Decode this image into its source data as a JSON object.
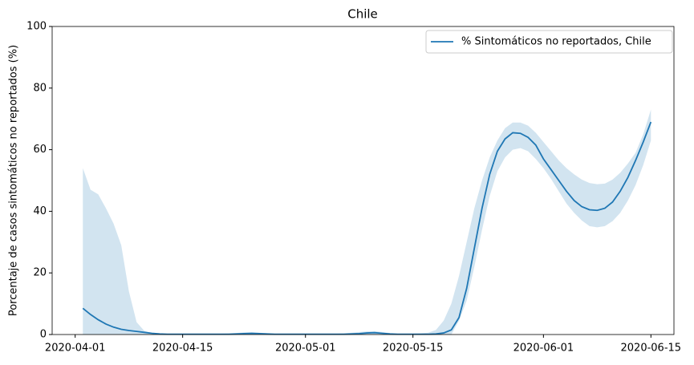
{
  "chart_data": {
    "type": "line",
    "title": "Chile",
    "ylabel": "Porcentaje de casos sintomáticos no reportados (%)",
    "x": [
      "2020-04-02",
      "2020-04-03",
      "2020-04-04",
      "2020-04-05",
      "2020-04-06",
      "2020-04-07",
      "2020-04-08",
      "2020-04-09",
      "2020-04-10",
      "2020-04-11",
      "2020-04-12",
      "2020-04-13",
      "2020-04-14",
      "2020-04-15",
      "2020-04-16",
      "2020-04-17",
      "2020-04-18",
      "2020-04-19",
      "2020-04-20",
      "2020-04-21",
      "2020-04-22",
      "2020-04-23",
      "2020-04-24",
      "2020-04-25",
      "2020-04-26",
      "2020-04-27",
      "2020-04-28",
      "2020-04-29",
      "2020-04-30",
      "2020-05-01",
      "2020-05-02",
      "2020-05-03",
      "2020-05-04",
      "2020-05-05",
      "2020-05-06",
      "2020-05-07",
      "2020-05-08",
      "2020-05-09",
      "2020-05-10",
      "2020-05-11",
      "2020-05-12",
      "2020-05-13",
      "2020-05-14",
      "2020-05-15",
      "2020-05-16",
      "2020-05-17",
      "2020-05-18",
      "2020-05-19",
      "2020-05-20",
      "2020-05-21",
      "2020-05-22",
      "2020-05-23",
      "2020-05-24",
      "2020-05-25",
      "2020-05-26",
      "2020-05-27",
      "2020-05-28",
      "2020-05-29",
      "2020-05-30",
      "2020-05-31",
      "2020-06-01",
      "2020-06-02",
      "2020-06-03",
      "2020-06-04",
      "2020-06-05",
      "2020-06-06",
      "2020-06-07",
      "2020-06-08",
      "2020-06-09",
      "2020-06-10",
      "2020-06-11",
      "2020-06-12",
      "2020-06-13",
      "2020-06-14",
      "2020-06-15"
    ],
    "series": [
      {
        "name": "% Sintomáticos no reportados, Chile",
        "color": "#1f77b4",
        "band_color": "#1f77b4",
        "values": [
          8.5,
          6.5,
          4.8,
          3.4,
          2.4,
          1.7,
          1.3,
          1.0,
          0.7,
          0.4,
          0.2,
          0.1,
          0.1,
          0.1,
          0.1,
          0.1,
          0.1,
          0.1,
          0.1,
          0.1,
          0.2,
          0.3,
          0.4,
          0.3,
          0.2,
          0.1,
          0.1,
          0.1,
          0.1,
          0.1,
          0.1,
          0.1,
          0.1,
          0.1,
          0.1,
          0.2,
          0.3,
          0.5,
          0.6,
          0.4,
          0.2,
          0.1,
          0.1,
          0.1,
          0.1,
          0.1,
          0.2,
          0.5,
          1.5,
          5.5,
          15,
          28,
          41,
          52,
          59.5,
          63.5,
          65.5,
          65.3,
          64,
          61.5,
          57,
          53.5,
          50,
          46.5,
          43.5,
          41.5,
          40.5,
          40.3,
          41,
          43,
          46.5,
          51,
          56.5,
          62.5,
          69
        ],
        "lower": [
          0,
          0,
          0,
          0,
          0,
          0,
          0,
          0,
          0,
          0,
          0,
          0,
          0,
          0,
          0,
          0,
          0,
          0,
          0,
          0,
          0,
          0,
          0,
          0,
          0,
          0,
          0,
          0,
          0,
          0,
          0,
          0,
          0,
          0,
          0,
          0,
          0,
          0,
          0,
          0,
          0,
          0,
          0,
          0,
          0,
          0,
          0,
          0,
          0,
          4.5,
          11,
          22,
          34,
          45,
          53,
          57.5,
          60,
          60.5,
          59.5,
          57,
          54,
          50.5,
          46.5,
          42.5,
          39.5,
          37,
          35.2,
          34.8,
          35.2,
          36.8,
          39.5,
          43.5,
          48.5,
          55,
          63
        ],
        "upper": [
          54,
          47,
          45.5,
          41,
          36,
          29,
          14,
          4,
          1.2,
          0.5,
          0.3,
          0.3,
          0.3,
          0.3,
          0.3,
          0.3,
          0.3,
          0.3,
          0.3,
          0.4,
          0.5,
          0.7,
          0.7,
          0.6,
          0.4,
          0.3,
          0.3,
          0.3,
          0.3,
          0.3,
          0.3,
          0.3,
          0.3,
          0.3,
          0.4,
          0.6,
          0.8,
          1.0,
          1.1,
          0.8,
          0.5,
          0.3,
          0.3,
          0.3,
          0.4,
          0.6,
          1.5,
          4.5,
          10,
          19,
          30,
          41,
          50,
          57.5,
          63,
          67,
          68.8,
          68.8,
          67.8,
          65.5,
          62.5,
          59.5,
          56.5,
          54,
          52,
          50.3,
          49.2,
          48.8,
          49,
          50.3,
          52.5,
          55.5,
          59,
          65,
          73
        ]
      }
    ],
    "xlim": [
      "2020-03-29",
      "2020-06-18"
    ],
    "xticks": [
      "2020-04-01",
      "2020-04-15",
      "2020-05-01",
      "2020-05-15",
      "2020-06-01",
      "2020-06-15"
    ],
    "ylim": [
      0,
      100
    ],
    "yticks": [
      0,
      20,
      40,
      60,
      80,
      100
    ],
    "grid": false,
    "legend": "upper right"
  }
}
